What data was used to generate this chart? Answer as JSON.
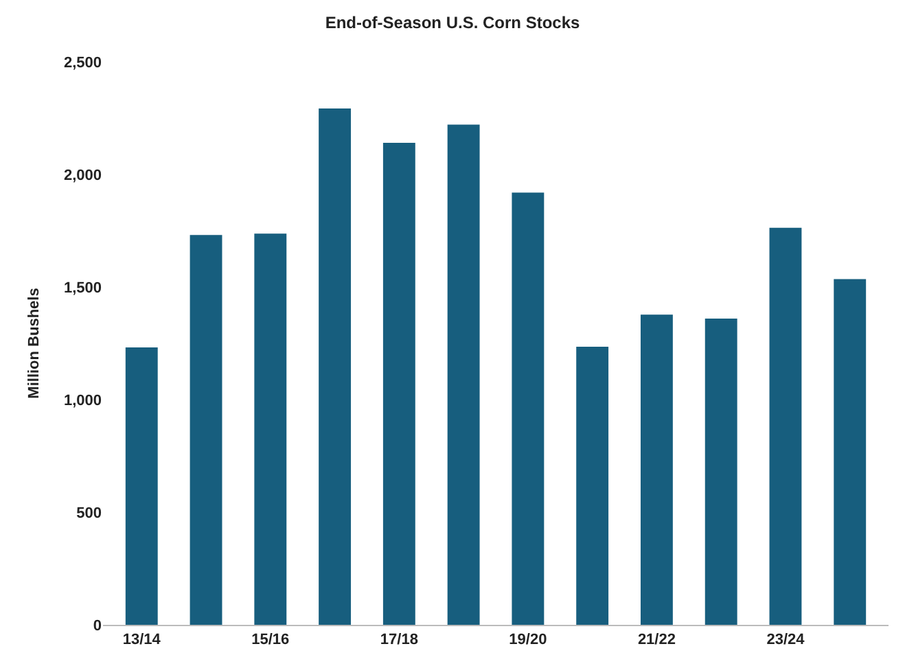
{
  "chart_data": {
    "type": "bar",
    "title": "End-of-Season U.S. Corn Stocks",
    "ylabel": "Million Bushels",
    "categories": [
      "13/14",
      null,
      "15/16",
      null,
      "17/18",
      null,
      "19/20",
      null,
      "21/22",
      null,
      "23/24",
      null
    ],
    "series": [
      {
        "color": "#175e7e",
        "values": [
          1232,
          1731,
          1737,
          2293,
          2140,
          2221,
          1919,
          1235,
          1377,
          1360,
          1763,
          1535
        ]
      }
    ],
    "ylim": [
      0,
      2500
    ],
    "yticks": [
      {
        "value": 0,
        "label": "0"
      },
      {
        "value": 500,
        "label": "500"
      },
      {
        "value": 1000,
        "label": "1,000"
      },
      {
        "value": 1500,
        "label": "1,500"
      },
      {
        "value": 2000,
        "label": "2,000"
      },
      {
        "value": 2500,
        "label": "2,500"
      }
    ]
  }
}
